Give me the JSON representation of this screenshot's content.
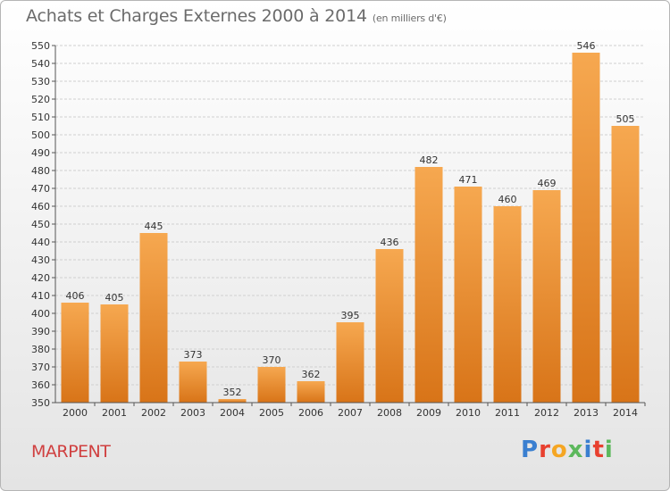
{
  "header": {
    "title": "Achats et Charges Externes 2000 à 2014",
    "subtitle": "(en milliers d'€)"
  },
  "footer": {
    "commune": "MARPENT",
    "brand_letters": [
      {
        "ch": "P",
        "color": "#3a7fd0"
      },
      {
        "ch": "r",
        "color": "#e8402f"
      },
      {
        "ch": "o",
        "color": "#f5a623"
      },
      {
        "ch": "x",
        "color": "#5cb85c"
      },
      {
        "ch": "i",
        "color": "#3a7fd0"
      },
      {
        "ch": "t",
        "color": "#e8402f"
      },
      {
        "ch": "i",
        "color": "#5cb85c"
      }
    ]
  },
  "colors": {
    "bar_top": "#f6a850",
    "bar_bottom": "#d87418",
    "grid": "#d0d0d0",
    "axis": "#555555"
  },
  "chart_data": {
    "type": "bar",
    "title": "Achats et Charges Externes 2000 à 2014",
    "subtitle": "(en milliers d'€)",
    "categories": [
      "2000",
      "2001",
      "2002",
      "2003",
      "2004",
      "2005",
      "2006",
      "2007",
      "2008",
      "2009",
      "2010",
      "2011",
      "2012",
      "2013",
      "2014"
    ],
    "values": [
      406,
      405,
      445,
      373,
      352,
      370,
      362,
      395,
      436,
      482,
      471,
      460,
      469,
      546,
      505
    ],
    "data_labels": [
      "406",
      "405",
      "445",
      "373",
      "352",
      "370",
      "362",
      "395",
      "436",
      "482",
      "471",
      "460",
      "469",
      "546",
      "505"
    ],
    "ylim": [
      350,
      550
    ],
    "yticks": [
      350,
      360,
      370,
      380,
      390,
      400,
      410,
      420,
      430,
      440,
      450,
      460,
      470,
      480,
      490,
      500,
      510,
      520,
      530,
      540,
      550
    ],
    "xlabel": "",
    "ylabel": "",
    "grid": true,
    "legend": "none"
  }
}
